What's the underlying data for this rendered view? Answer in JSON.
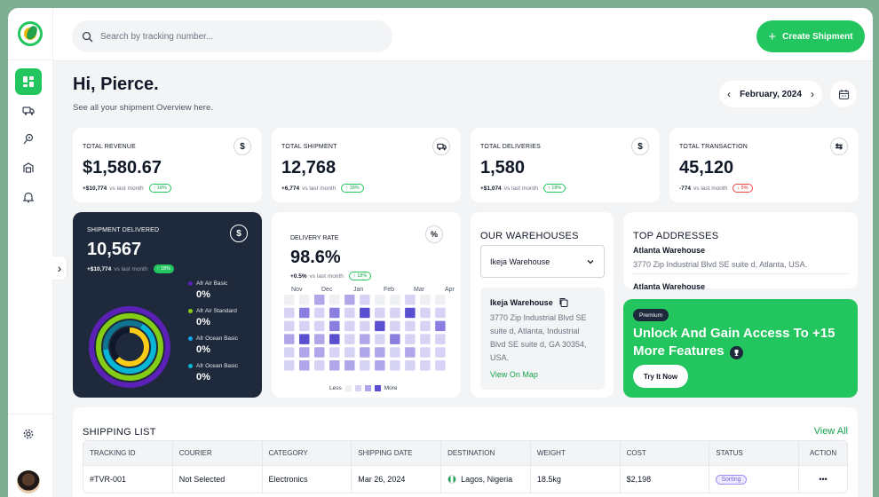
{
  "sidebar": {
    "items": [
      {
        "name": "dashboard",
        "active": true
      },
      {
        "name": "shipments"
      },
      {
        "name": "tracking"
      },
      {
        "name": "warehouse"
      },
      {
        "name": "notifications"
      }
    ],
    "settings_icon": "gear-icon"
  },
  "header": {
    "search_placeholder": "Search by tracking number...",
    "create_button": "Create Shipment"
  },
  "greeting": {
    "title": "Hi, Pierce.",
    "subtitle": "See all your shipment Overview here."
  },
  "date_picker": {
    "month": "February, 2024"
  },
  "stats": [
    {
      "label": "TOTAL REVENUE",
      "value": "$1,580.67",
      "delta": "+$10,774",
      "period": "vs last month",
      "badge": "18%",
      "trend": "up",
      "icon": "$"
    },
    {
      "label": "TOTAL SHIPMENT",
      "value": "12,768",
      "delta": "+6,774",
      "period": "vs last month",
      "badge": "18%",
      "trend": "up",
      "icon": "truck"
    },
    {
      "label": "TOTAL DELIVERIES",
      "value": "1,580",
      "delta": "+$1,074",
      "period": "vs last month",
      "badge": "18%",
      "trend": "up",
      "icon": "$"
    },
    {
      "label": "TOTAL TRANSACTION",
      "value": "45,120",
      "delta": "-774",
      "period": "vs last month",
      "badge": "5%",
      "trend": "down",
      "icon": "swap"
    }
  ],
  "shipment_delivered": {
    "label": "SHIPMENT DELIVERED",
    "value": "10,567",
    "delta": "+$10,774",
    "period": "vs last month",
    "badge": "18%",
    "icon": "$",
    "legend": [
      {
        "name": "Afr Air Basic",
        "value": "0%",
        "color": "#5b21b6"
      },
      {
        "name": "Afr Air Standard",
        "value": "0%",
        "color": "#84cc16"
      },
      {
        "name": "Afr Ocean Basic",
        "value": "0%",
        "color": "#0ea5e9"
      },
      {
        "name": "Afr Ocean Basic",
        "value": "0%",
        "color": "#06b6d4"
      }
    ]
  },
  "delivery_rate": {
    "label": "DELIVERY RATE",
    "value": "98.6%",
    "delta": "+0.5%",
    "period": "vs last month",
    "badge": "18%",
    "icon": "%",
    "months": [
      "Nov",
      "Dec",
      "Jan",
      "Feb",
      "Mar",
      "Apr"
    ],
    "legend_less": "Less",
    "legend_more": "More",
    "levels": [
      [
        0,
        0,
        2,
        0,
        2,
        1,
        0,
        0,
        1,
        0,
        0
      ],
      [
        1,
        3,
        1,
        3,
        1,
        4,
        1,
        1,
        4,
        1,
        1
      ],
      [
        1,
        1,
        1,
        3,
        1,
        1,
        4,
        1,
        1,
        1,
        3
      ],
      [
        2,
        4,
        2,
        4,
        1,
        2,
        1,
        3,
        1,
        1,
        1
      ],
      [
        1,
        2,
        2,
        1,
        1,
        2,
        2,
        1,
        2,
        1,
        1
      ],
      [
        1,
        2,
        1,
        2,
        2,
        1,
        2,
        1,
        1,
        1,
        1
      ]
    ]
  },
  "warehouses": {
    "title": "OUR WAREHOUSES",
    "selected": "Ikeja Warehouse",
    "detail_name": "Ikeja Warehouse",
    "detail_address": "3770 Zip Industrial Blvd SE suite d, Atlanta, Industrial Blvd SE suite d, GA 30354, USA.",
    "link": "View On Map"
  },
  "top_addresses": {
    "title": "TOP ADDRESSES",
    "items": [
      {
        "name": "Atlanta Warehouse",
        "address": "3770 Zip Industrial Blvd SE suite d, Atlanta, USA."
      },
      {
        "name": "Atlanta Warehouse"
      }
    ]
  },
  "premium": {
    "badge": "Premium",
    "title": "Unlock And Gain Access To +15 More Features",
    "button": "Try It Now"
  },
  "shipping_list": {
    "title": "SHIPPING LIST",
    "view_all": "View All",
    "columns": [
      "TRACKING ID",
      "COURIER",
      "CATEGORY",
      "SHIPPING DATE",
      "DESTINATION",
      "WEIGHT",
      "COST",
      "STATUS",
      "ACTION"
    ],
    "rows": [
      {
        "tracking_id": "#TVR-001",
        "courier": "Not Selected",
        "category": "Electronics",
        "date": "Mar 26, 2024",
        "destination": "Lagos, Nigeria",
        "weight": "18.5kg",
        "cost": "$2,198",
        "status": "Sorting",
        "action": "•••"
      }
    ]
  },
  "colors": {
    "accent": "#22c55e",
    "dark": "#1e293b",
    "heat": [
      "#eef0f4",
      "#d6d3f5",
      "#b0a6ea",
      "#8a7fe0",
      "#5b4fd1"
    ]
  }
}
